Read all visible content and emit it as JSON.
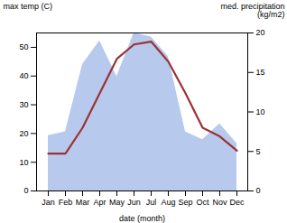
{
  "chart_data": {
    "type": "line",
    "categories": [
      "Jan",
      "Feb",
      "Mar",
      "Apr",
      "May",
      "Jun",
      "Jul",
      "Aug",
      "Sep",
      "Oct",
      "Nov",
      "Dec"
    ],
    "xlabel": "date (month)",
    "ylabel": "max temp (C)",
    "y2label": "med. precipitation\n(kg/m2)",
    "ylim": [
      0,
      55
    ],
    "yticks": [
      0,
      10,
      20,
      30,
      40,
      50
    ],
    "y2lim": [
      0,
      20
    ],
    "y2ticks": [
      0,
      5,
      10,
      15,
      20
    ],
    "grid": false,
    "series": [
      {
        "type": "area",
        "axis": "y2",
        "color": "#b8c9ee",
        "values": [
          7,
          7.5,
          16,
          19,
          14.5,
          20,
          19.5,
          17,
          7.5,
          6.5,
          8.5,
          6
        ]
      },
      {
        "type": "line",
        "color": "#993333",
        "values": [
          13,
          13,
          22,
          34,
          46,
          51,
          52,
          45,
          34,
          22,
          19,
          14
        ]
      }
    ]
  }
}
